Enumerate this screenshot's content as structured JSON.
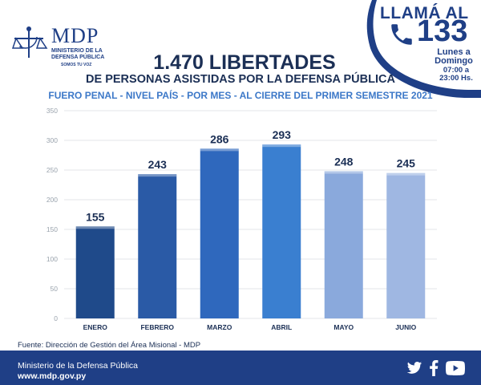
{
  "logo": {
    "acronym": "MDP",
    "org_lines": [
      "MINISTERIO DE LA",
      "DEFENSA PÚBLICA"
    ],
    "tagline": "SOMOS TU VOZ"
  },
  "header": {
    "title": "1.470 LIBERTADES",
    "title_sub": "DE PERSONAS ASISTIDAS POR LA DEFENSA PÚBLICA",
    "subtitle": "FUERO PENAL - NIVEL PAÍS - POR MES - AL CIERRE DEL PRIMER SEMESTRE 2021"
  },
  "callout": {
    "llama": "LLAMÁ AL",
    "number": "133",
    "days": [
      "Lunes a",
      "Domingo"
    ],
    "hours": [
      "07:00 a",
      "23:00 Hs."
    ],
    "icon": "phone-icon",
    "bg_color": "#1f3f86"
  },
  "chart_data": {
    "type": "bar",
    "categories": [
      "ENERO",
      "FEBRERO",
      "MARZO",
      "ABRIL",
      "MAYO",
      "JUNIO"
    ],
    "values": [
      155,
      243,
      286,
      293,
      248,
      245
    ],
    "value_labels": [
      "155",
      "243",
      "286",
      "293",
      "248",
      "245"
    ],
    "bar_colors": [
      "#1f4a8a",
      "#2a5aa6",
      "#2f68bd",
      "#3a7fd0",
      "#8aa9dc",
      "#9fb7e2"
    ],
    "ylim": [
      0,
      350
    ],
    "yticks": [
      "0",
      "50",
      "100",
      "150",
      "200",
      "250",
      "300",
      "350"
    ],
    "grid": true,
    "legend": "none"
  },
  "source": "Fuente: Dirección de Gestión del Área Misional - MDP",
  "footer": {
    "name": "Ministerio de la Defensa Pública",
    "url": "www.mdp.gov.py",
    "icons": [
      "twitter-icon",
      "facebook-icon",
      "youtube-icon"
    ],
    "bg_color": "#1f3f86"
  }
}
